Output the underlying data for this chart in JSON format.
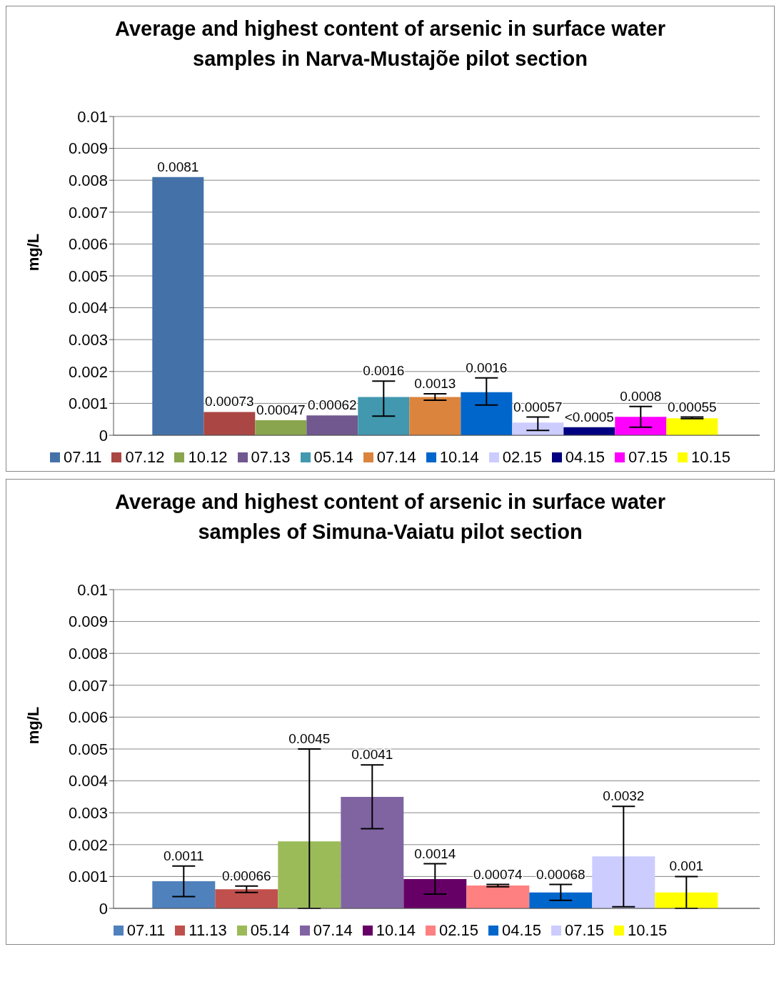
{
  "chart_data": [
    {
      "type": "bar",
      "title": "Average and highest content of arsenic in surface water samples in Narva-Mustajõe pilot section",
      "ylabel": "mg/L",
      "categories": [
        null
      ],
      "ylim": [
        0,
        0.01
      ],
      "yticks": [
        0,
        0.001,
        0.002,
        0.003,
        0.004,
        0.005,
        0.006,
        0.007,
        0.008,
        0.009,
        0.01
      ],
      "grid": "y",
      "legend": "bottom",
      "tick_labels": "y",
      "series": [
        {
          "name": "07.11",
          "color": "#4472a8",
          "values": [
            0.0081
          ]
        },
        {
          "name": "07.12",
          "color": "#aa4643",
          "values": [
            0.00073
          ]
        },
        {
          "name": "10.12",
          "color": "#89a54e",
          "values": [
            0.00047
          ]
        },
        {
          "name": "07.13",
          "color": "#71588f",
          "values": [
            0.00062
          ]
        },
        {
          "name": "05.14",
          "color": "#4198af",
          "values": [
            0.0012
          ],
          "errors": [
            [
              0.0006,
              0.0017
            ]
          ]
        },
        {
          "name": "07.14",
          "color": "#db843d",
          "values": [
            0.0012
          ],
          "errors": [
            [
              0.0011,
              0.0013
            ]
          ]
        },
        {
          "name": "10.14",
          "color": "#0066cc",
          "values": [
            0.00135
          ],
          "errors": [
            [
              0.00095,
              0.0018
            ]
          ]
        },
        {
          "name": "02.15",
          "color": "#ccccff",
          "values": [
            0.0004
          ],
          "errors": [
            [
              0.00015,
              0.00057
            ]
          ]
        },
        {
          "name": "04.15",
          "color": "#000080",
          "values": [
            0.00025
          ]
        },
        {
          "name": "07.15",
          "color": "#ff00ff",
          "values": [
            0.00058
          ],
          "errors": [
            [
              0.00025,
              0.0009
            ]
          ]
        },
        {
          "name": "10.15",
          "color": "#ffff00",
          "values": [
            0.00053
          ],
          "errors": [
            [
              0.00052,
              0.00057
            ]
          ]
        }
      ],
      "annotations": [
        {
          "text": "0.0081",
          "y": 0.0081
        },
        {
          "text": "0.00073",
          "y": 0.00073
        },
        {
          "text": "0.00047",
          "y": 0.00047
        },
        {
          "text": "0.00062",
          "y": 0.00062
        },
        {
          "text": "0.0016",
          "y": 0.0017
        },
        {
          "text": "0.0013",
          "y": 0.0013
        },
        {
          "text": "0.0016",
          "y": 0.0018
        },
        {
          "text": "0.00057",
          "y": 0.00057
        },
        {
          "text": "<0.0005",
          "y": 0.00025
        },
        {
          "text": "0.0008",
          "y": 0.0009
        },
        {
          "text": "0.00055",
          "y": 0.00057
        }
      ]
    },
    {
      "type": "bar",
      "title": "Average and highest content of arsenic in surface water samples of Simuna-Vaiatu pilot section",
      "ylabel": "mg/L",
      "categories": [
        null
      ],
      "ylim": [
        0,
        0.01
      ],
      "yticks": [
        0,
        0.001,
        0.002,
        0.003,
        0.004,
        0.005,
        0.006,
        0.007,
        0.008,
        0.009,
        0.01
      ],
      "grid": "y",
      "legend": "bottom",
      "tick_labels": "y",
      "series": [
        {
          "name": "07.11",
          "color": "#4f81bd",
          "values": [
            0.00085
          ],
          "errors": [
            [
              0.00037,
              0.00133
            ]
          ]
        },
        {
          "name": "11.13",
          "color": "#c0504d",
          "values": [
            0.0006
          ],
          "errors": [
            [
              0.0005,
              0.0007
            ]
          ]
        },
        {
          "name": "05.14",
          "color": "#9bbb59",
          "values": [
            0.0021
          ],
          "errors": [
            [
              0,
              0.005
            ]
          ]
        },
        {
          "name": "07.14",
          "color": "#8064a2",
          "values": [
            0.0035
          ],
          "errors": [
            [
              0.0025,
              0.0045
            ]
          ]
        },
        {
          "name": "10.14",
          "color": "#660066",
          "values": [
            0.00092
          ],
          "errors": [
            [
              0.00045,
              0.0014
            ]
          ]
        },
        {
          "name": "02.15",
          "color": "#ff8080",
          "values": [
            0.00072
          ],
          "errors": [
            [
              0.00068,
              0.00075
            ]
          ]
        },
        {
          "name": "04.15",
          "color": "#0066cc",
          "values": [
            0.0005
          ],
          "errors": [
            [
              0.00025,
              0.00075
            ]
          ]
        },
        {
          "name": "07.15",
          "color": "#ccccff",
          "values": [
            0.00163
          ],
          "errors": [
            [
              5e-05,
              0.0032
            ]
          ]
        },
        {
          "name": "10.15",
          "color": "#ffff00",
          "values": [
            0.0005
          ],
          "errors": [
            [
              0,
              0.001
            ]
          ]
        }
      ],
      "annotations": [
        {
          "text": "0.0011",
          "y": 0.00133
        },
        {
          "text": "0.00066",
          "y": 0.0007
        },
        {
          "text": "0.0045",
          "y": 0.005
        },
        {
          "text": "0.0041",
          "y": 0.0045
        },
        {
          "text": "0.0014",
          "y": 0.0014
        },
        {
          "text": "0.00074",
          "y": 0.00075
        },
        {
          "text": "0.00068",
          "y": 0.00075
        },
        {
          "text": "0.0032",
          "y": 0.0032
        },
        {
          "text": "0.001",
          "y": 0.001
        }
      ]
    }
  ]
}
